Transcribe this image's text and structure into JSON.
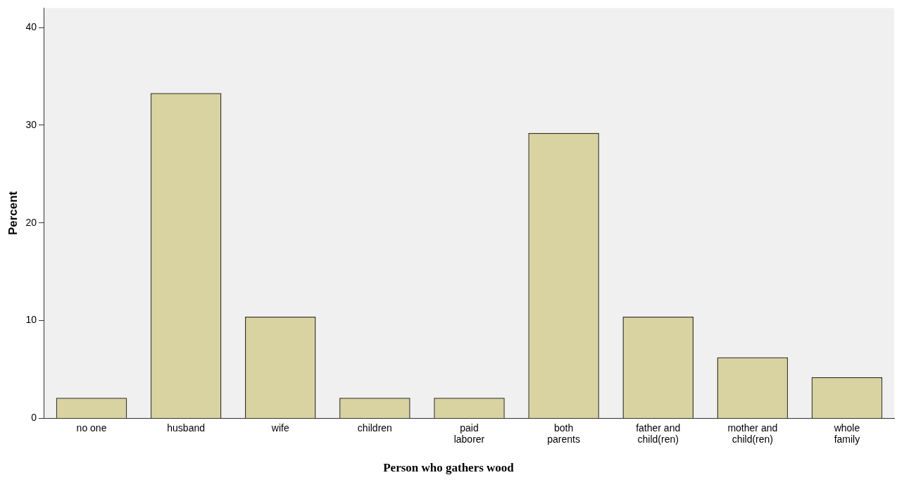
{
  "chart_data": {
    "type": "bar",
    "xlabel": "Person who gathers wood",
    "ylabel": "Percent",
    "categories": [
      "no one",
      "husband",
      "wife",
      "children",
      "paid laborer",
      "both parents",
      "father and child(ren)",
      "mother and child(ren)",
      "whole family"
    ],
    "values": [
      2.1,
      33.3,
      10.4,
      2.1,
      2.1,
      29.2,
      10.4,
      6.25,
      4.2
    ],
    "color": "#d9d3a1",
    "ylim": [
      0,
      42
    ],
    "yticks": [
      0,
      10,
      20,
      30,
      40
    ],
    "grid": false,
    "legend": false
  }
}
